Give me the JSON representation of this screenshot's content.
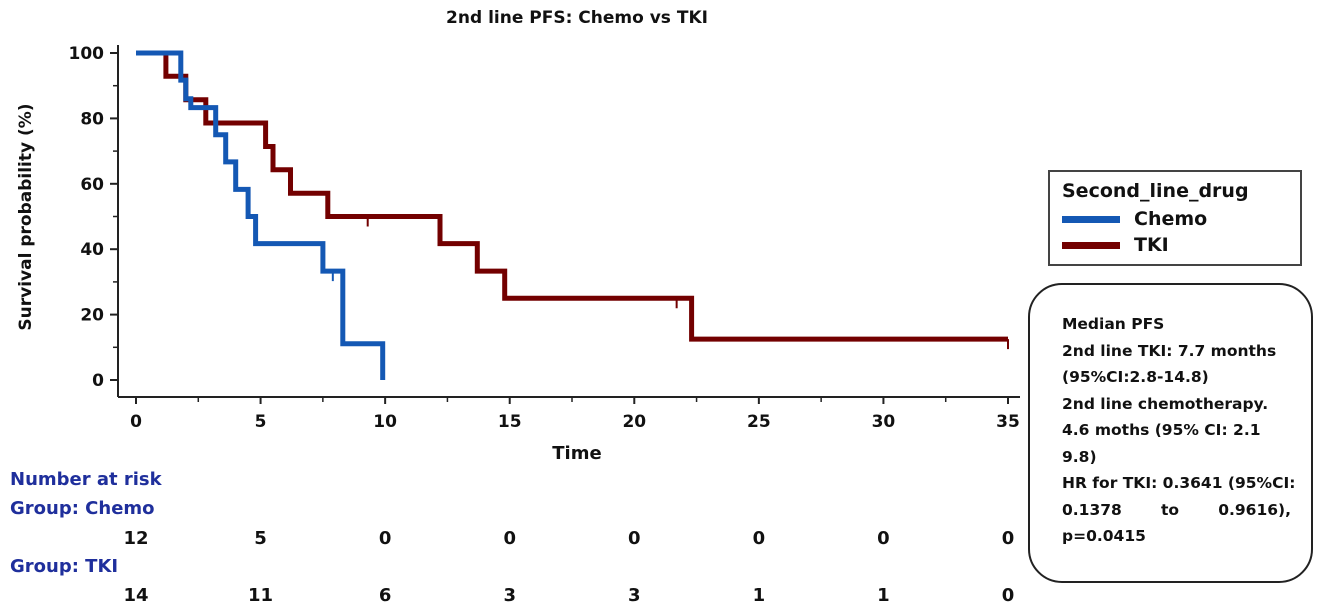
{
  "chart_data": {
    "type": "line",
    "title": "2nd line PFS: Chemo vs TKI",
    "xlabel": "Time",
    "ylabel": "Survival probability (%)",
    "xlim": [
      0,
      35
    ],
    "ylim": [
      0,
      100
    ],
    "x_ticks": [
      0,
      5,
      10,
      15,
      20,
      25,
      30,
      35
    ],
    "y_ticks": [
      0,
      20,
      40,
      60,
      80,
      100
    ],
    "grid": false,
    "legend_placement": "right",
    "series": [
      {
        "name": "Chemo",
        "color": "#1458b4",
        "x": [
          0,
          1.8,
          1.8,
          2.0,
          2.0,
          2.2,
          2.2,
          3.2,
          3.2,
          3.6,
          3.6,
          4.0,
          4.0,
          4.5,
          4.5,
          4.8,
          4.8,
          7.5,
          7.5,
          8.3,
          8.3,
          9.9,
          9.9
        ],
        "y": [
          100,
          100,
          91.7,
          91.7,
          86,
          86,
          83.3,
          83.3,
          75,
          75,
          66.7,
          66.7,
          58.3,
          58.3,
          50,
          50,
          41.7,
          41.7,
          33.3,
          33.3,
          11.1,
          11.1,
          0
        ],
        "censor_x": [
          7.9
        ],
        "censor_y": [
          33.3
        ]
      },
      {
        "name": "TKI",
        "color": "#730000",
        "x": [
          0,
          1.2,
          1.2,
          2.0,
          2.0,
          2.8,
          2.8,
          5.2,
          5.2,
          5.5,
          5.5,
          6.2,
          6.2,
          7.7,
          7.7,
          12.2,
          12.2,
          13.7,
          13.7,
          14.8,
          14.8,
          22.3,
          22.3,
          35
        ],
        "y": [
          100,
          100,
          92.9,
          92.9,
          85.7,
          85.7,
          78.6,
          78.6,
          71.4,
          71.4,
          64.3,
          64.3,
          57.1,
          57.1,
          50,
          50,
          41.7,
          41.7,
          33.3,
          33.3,
          25,
          25,
          12.5,
          12.5
        ],
        "censor_x": [
          9.3,
          21.7,
          35
        ],
        "censor_y": [
          50,
          25,
          12.5
        ]
      }
    ]
  },
  "legend": {
    "title": "Second_line_drug",
    "items": [
      {
        "label": "Chemo",
        "color": "#1458b4"
      },
      {
        "label": "TKI",
        "color": "#730000"
      }
    ]
  },
  "stats": {
    "lines": [
      "Median PFS",
      "2nd line TKI: 7.7 months",
      "(95%CI:2.8-14.8)",
      "2nd line chemotherapy.",
      "4.6 moths (95% CI: 2.1",
      "9.8)",
      "HR for TKI: 0.3641 (95%CI:"
    ],
    "justified_line": [
      "0.1378",
      "to",
      "0.9616),"
    ],
    "last_line": "p=0.0415"
  },
  "risk_table": {
    "heading": "Number at risk",
    "groups": [
      {
        "label": "Group: Chemo",
        "counts": [
          "12",
          "5",
          "0",
          "0",
          "0",
          "0",
          "0",
          "0"
        ]
      },
      {
        "label": "Group: TKI",
        "counts": [
          "14",
          "11",
          "6",
          "3",
          "3",
          "1",
          "1",
          "0"
        ]
      }
    ]
  }
}
